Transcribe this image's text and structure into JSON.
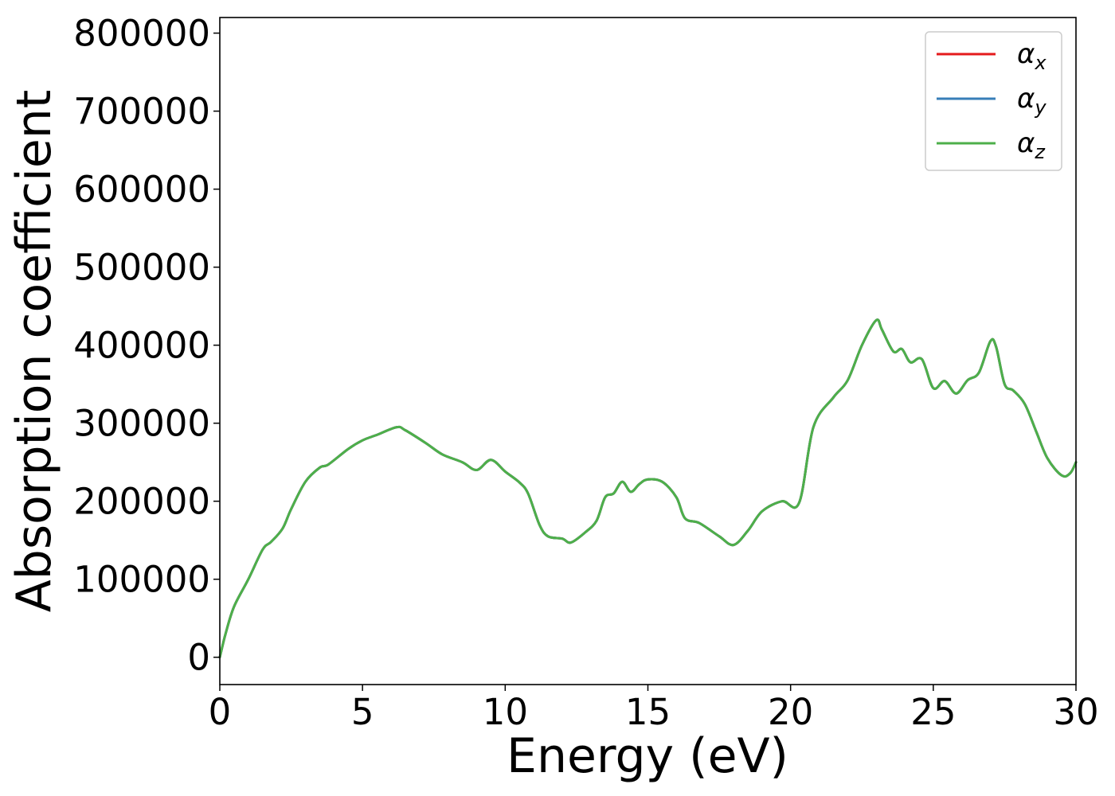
{
  "chart_data": {
    "type": "line",
    "xlabel": "Energy (eV)",
    "ylabel": "Absorption coefficient",
    "xlim": [
      0,
      30
    ],
    "ylim": [
      -35000,
      820000
    ],
    "xticks": [
      0,
      5,
      10,
      15,
      20,
      25,
      30
    ],
    "xtick_labels": [
      "0",
      "5",
      "10",
      "15",
      "20",
      "25",
      "30"
    ],
    "yticks": [
      0,
      100000,
      200000,
      300000,
      400000,
      500000,
      600000,
      700000,
      800000
    ],
    "ytick_labels": [
      "0",
      "100000",
      "200000",
      "300000",
      "400000",
      "500000",
      "600000",
      "700000",
      "800000"
    ],
    "grid": false,
    "legend_position": "top-right",
    "series": [
      {
        "name": "α",
        "subscript": "x",
        "color": "#e41a1c",
        "x": [
          0,
          0.2,
          0.5,
          1,
          1.5,
          1.8,
          2.2,
          2.5,
          3,
          3.5,
          3.8,
          4.5,
          5,
          5.5,
          6.2,
          6.5,
          7.2,
          7.8,
          8.5,
          9,
          9.5,
          10,
          10.5,
          10.8,
          11.2,
          11.5,
          12,
          12.3,
          12.8,
          13.2,
          13.5,
          13.8,
          14.1,
          14.4,
          14.7,
          15,
          15.5,
          16,
          16.3,
          16.8,
          17.5,
          18,
          18.5,
          19,
          19.7,
          20.3,
          20.8,
          21.5,
          22,
          22.5,
          23,
          23.2,
          23.6,
          23.9,
          24.2,
          24.6,
          25,
          25.4,
          25.8,
          26.2,
          26.6,
          27,
          27.2,
          27.5,
          27.8,
          28.2,
          28.6,
          29,
          29.5,
          29.8,
          30
        ],
        "y": [
          0,
          30000,
          65000,
          100000,
          138000,
          148000,
          165000,
          190000,
          225000,
          243000,
          247000,
          267000,
          278000,
          285000,
          295000,
          291000,
          275000,
          260000,
          250000,
          240000,
          253000,
          238000,
          224000,
          210000,
          170000,
          155000,
          152000,
          147000,
          160000,
          175000,
          205000,
          210000,
          225000,
          212000,
          222000,
          228000,
          225000,
          205000,
          178000,
          172000,
          155000,
          144000,
          162000,
          187000,
          200000,
          198000,
          295000,
          333000,
          355000,
          400000,
          432000,
          420000,
          392000,
          395000,
          378000,
          382000,
          345000,
          354000,
          338000,
          355000,
          365000,
          405000,
          398000,
          350000,
          342000,
          325000,
          290000,
          255000,
          233000,
          236000,
          250000
        ]
      },
      {
        "name": "α",
        "subscript": "y",
        "color": "#377eb8",
        "x": [
          0,
          0.2,
          0.5,
          1,
          1.5,
          1.8,
          2.2,
          2.5,
          3,
          3.5,
          3.8,
          4.5,
          5,
          5.5,
          6.2,
          6.5,
          7.2,
          7.8,
          8.5,
          9,
          9.5,
          10,
          10.5,
          10.8,
          11.2,
          11.5,
          12,
          12.3,
          12.8,
          13.2,
          13.5,
          13.8,
          14.1,
          14.4,
          14.7,
          15,
          15.5,
          16,
          16.3,
          16.8,
          17.5,
          18,
          18.5,
          19,
          19.7,
          20.3,
          20.8,
          21.5,
          22,
          22.5,
          23,
          23.2,
          23.6,
          23.9,
          24.2,
          24.6,
          25,
          25.4,
          25.8,
          26.2,
          26.6,
          27,
          27.2,
          27.5,
          27.8,
          28.2,
          28.6,
          29,
          29.5,
          29.8,
          30
        ],
        "y": [
          0,
          30000,
          65000,
          100000,
          138000,
          148000,
          165000,
          190000,
          225000,
          243000,
          247000,
          267000,
          278000,
          285000,
          295000,
          291000,
          275000,
          260000,
          250000,
          240000,
          253000,
          238000,
          224000,
          210000,
          170000,
          155000,
          152000,
          147000,
          160000,
          175000,
          205000,
          210000,
          225000,
          212000,
          222000,
          228000,
          225000,
          205000,
          178000,
          172000,
          155000,
          144000,
          162000,
          187000,
          200000,
          198000,
          295000,
          333000,
          355000,
          400000,
          432000,
          420000,
          392000,
          395000,
          378000,
          382000,
          345000,
          354000,
          338000,
          355000,
          365000,
          405000,
          398000,
          350000,
          342000,
          325000,
          290000,
          255000,
          233000,
          236000,
          250000
        ]
      },
      {
        "name": "α",
        "subscript": "z",
        "color": "#4daf4a",
        "x": [
          0,
          0.2,
          0.5,
          1,
          1.5,
          1.8,
          2.2,
          2.5,
          3,
          3.5,
          3.8,
          4.5,
          5,
          5.5,
          6.2,
          6.5,
          7.2,
          7.8,
          8.5,
          9,
          9.5,
          10,
          10.5,
          10.8,
          11.2,
          11.5,
          12,
          12.3,
          12.8,
          13.2,
          13.5,
          13.8,
          14.1,
          14.4,
          14.7,
          15,
          15.5,
          16,
          16.3,
          16.8,
          17.5,
          18,
          18.5,
          19,
          19.7,
          20.3,
          20.8,
          21.5,
          22,
          22.5,
          23,
          23.2,
          23.6,
          23.9,
          24.2,
          24.6,
          25,
          25.4,
          25.8,
          26.2,
          26.6,
          27,
          27.2,
          27.5,
          27.8,
          28.2,
          28.6,
          29,
          29.5,
          29.8,
          30
        ],
        "y": [
          0,
          30000,
          65000,
          100000,
          138000,
          148000,
          165000,
          190000,
          225000,
          243000,
          247000,
          267000,
          278000,
          285000,
          295000,
          291000,
          275000,
          260000,
          250000,
          240000,
          253000,
          238000,
          224000,
          210000,
          170000,
          155000,
          152000,
          147000,
          160000,
          175000,
          205000,
          210000,
          225000,
          212000,
          222000,
          228000,
          225000,
          205000,
          178000,
          172000,
          155000,
          144000,
          162000,
          187000,
          200000,
          198000,
          295000,
          333000,
          355000,
          400000,
          432000,
          420000,
          392000,
          395000,
          378000,
          382000,
          345000,
          354000,
          338000,
          355000,
          365000,
          405000,
          398000,
          350000,
          342000,
          325000,
          290000,
          255000,
          233000,
          236000,
          250000
        ]
      }
    ]
  }
}
